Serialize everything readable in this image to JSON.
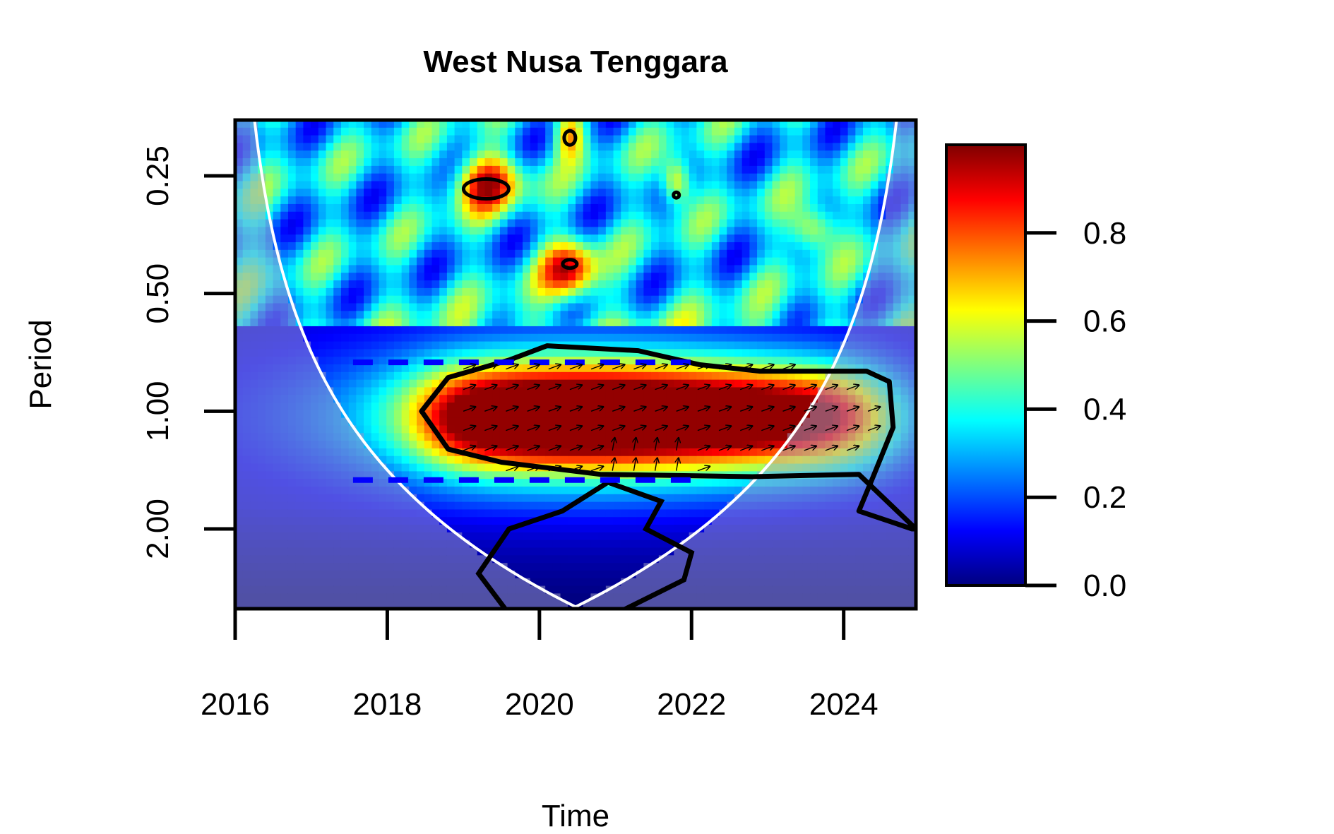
{
  "chart_data": {
    "type": "heatmap",
    "title": "West Nusa Tenggara",
    "xlabel": "Time",
    "ylabel": "Period",
    "x_ticks": [
      "2016",
      "2018",
      "2020",
      "2022",
      "2024"
    ],
    "x_tick_values": [
      2016,
      2018,
      2020,
      2022,
      2024
    ],
    "xlim": [
      2016,
      2024.95
    ],
    "y_ticks": [
      "0.25",
      "0.50",
      "1.00",
      "2.00"
    ],
    "y_tick_values": [
      0.25,
      0.5,
      1.0,
      2.0
    ],
    "y_scale": "log2",
    "ylim": [
      3.2,
      0.18
    ],
    "colorbar": {
      "ticks": [
        "0.0",
        "0.2",
        "0.4",
        "0.6",
        "0.8"
      ],
      "tick_values": [
        0,
        0.2,
        0.4,
        0.6,
        0.8
      ],
      "range": [
        0,
        1
      ],
      "palette": [
        "#00007f",
        "#0000ff",
        "#007fff",
        "#00ffff",
        "#7fff7f",
        "#ffff00",
        "#ff7f00",
        "#ff0000",
        "#7f0000"
      ],
      "placement": "right"
    },
    "significance_level": 0.95,
    "main_region": {
      "period_range": [
        0.72,
        1.45
      ],
      "time_range": [
        2018.3,
        2024.6
      ],
      "peak_power": 0.95
    },
    "dashed_periods": [
      0.75,
      1.5
    ],
    "dashed_line_color": "#0000ff",
    "coi_color": "#ffffff",
    "contour_color": "#000000",
    "arrows_description": "phase arrows pointing right / upward-right"
  }
}
